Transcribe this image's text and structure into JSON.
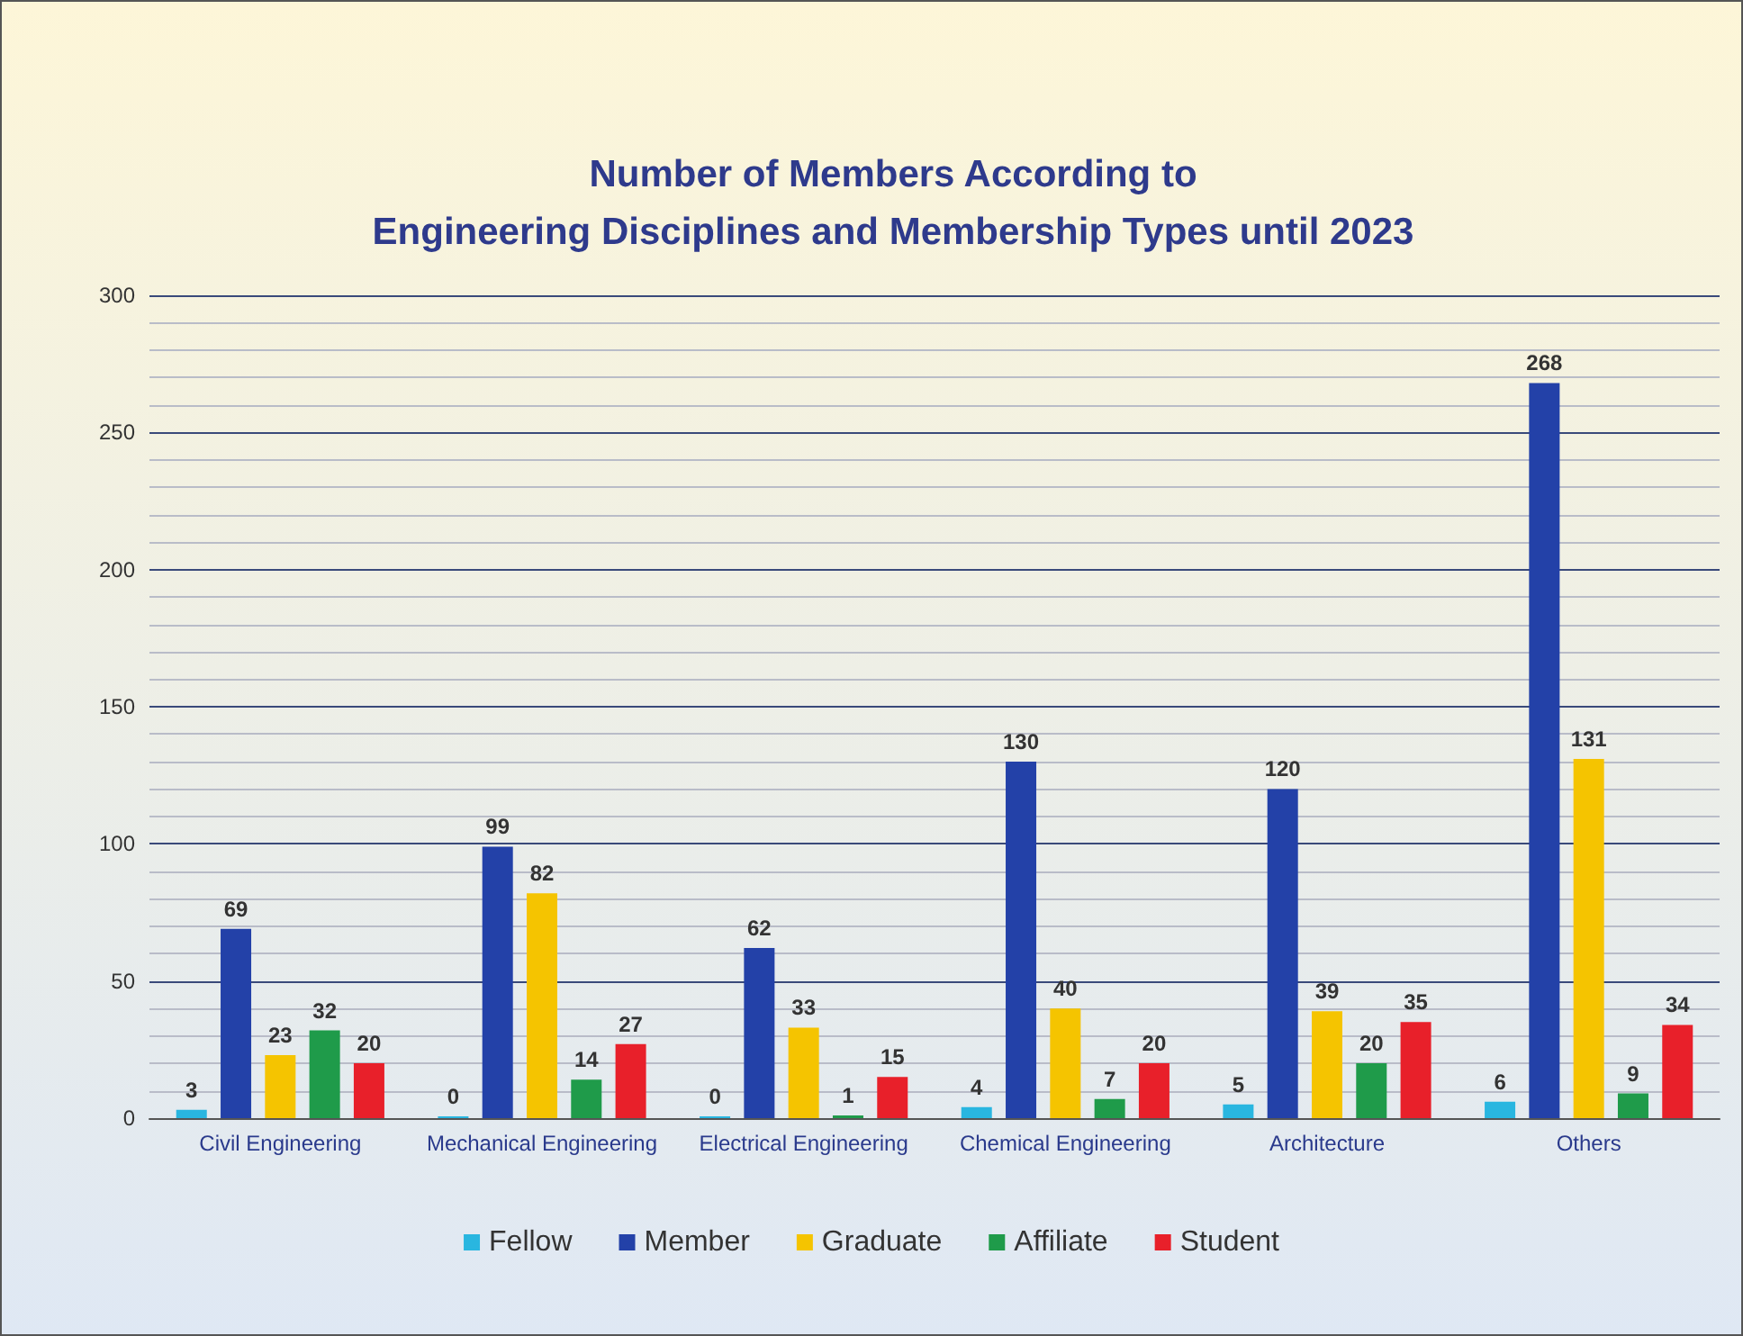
{
  "chart_data": {
    "type": "bar",
    "title": "Number of Members According to\nEngineering Disciplines and Membership Types until 2023",
    "categories": [
      "Civil Engineering",
      "Mechanical Engineering",
      "Electrical Engineering",
      "Chemical Engineering",
      "Architecture",
      "Others"
    ],
    "series": [
      {
        "name": "Fellow",
        "color": "#29b6e0",
        "values": [
          3,
          0,
          0,
          4,
          5,
          6
        ]
      },
      {
        "name": "Member",
        "color": "#2341a8",
        "values": [
          69,
          99,
          62,
          130,
          120,
          268
        ]
      },
      {
        "name": "Graduate",
        "color": "#f5c400",
        "values": [
          23,
          82,
          33,
          40,
          39,
          131
        ]
      },
      {
        "name": "Affiliate",
        "color": "#1f9b4a",
        "values": [
          32,
          14,
          1,
          7,
          20,
          9
        ]
      },
      {
        "name": "Student",
        "color": "#e8202a",
        "values": [
          20,
          27,
          15,
          20,
          35,
          34
        ]
      }
    ],
    "ylim": [
      0,
      300
    ],
    "yticks": [
      0,
      50,
      100,
      150,
      200,
      250,
      300
    ],
    "grid": "y",
    "legend": "bottom",
    "data_labels": true
  }
}
